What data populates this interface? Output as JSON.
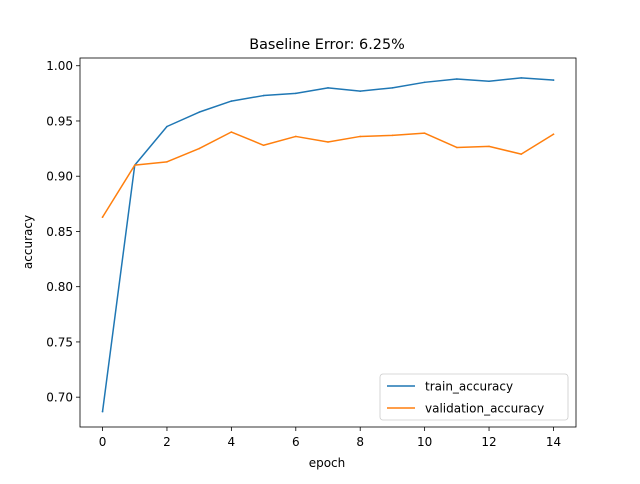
{
  "chart_data": {
    "type": "line",
    "title": "Baseline Error: 6.25%",
    "xlabel": "epoch",
    "ylabel": "accuracy",
    "x": [
      0,
      1,
      2,
      3,
      4,
      5,
      6,
      7,
      8,
      9,
      10,
      11,
      12,
      13,
      14
    ],
    "xlim": [
      -0.7,
      14.7
    ],
    "ylim": [
      0.673,
      1.007
    ],
    "x_ticks": [
      0,
      2,
      4,
      6,
      8,
      10,
      12,
      14
    ],
    "y_ticks": [
      0.7,
      0.75,
      0.8,
      0.85,
      0.9,
      0.95,
      1.0
    ],
    "y_tick_labels": [
      "0.70",
      "0.75",
      "0.80",
      "0.85",
      "0.90",
      "0.95",
      "1.00"
    ],
    "grid": false,
    "legend_position": "lower-right",
    "series": [
      {
        "name": "train_accuracy",
        "color": "#1f77b4",
        "values": [
          0.687,
          0.91,
          0.945,
          0.958,
          0.968,
          0.973,
          0.975,
          0.98,
          0.977,
          0.98,
          0.985,
          0.988,
          0.986,
          0.989,
          0.987
        ]
      },
      {
        "name": "validation_accuracy",
        "color": "#ff7f0e",
        "values": [
          0.863,
          0.91,
          0.913,
          0.925,
          0.94,
          0.928,
          0.936,
          0.931,
          0.936,
          0.937,
          0.939,
          0.926,
          0.927,
          0.92,
          0.938
        ]
      }
    ]
  }
}
